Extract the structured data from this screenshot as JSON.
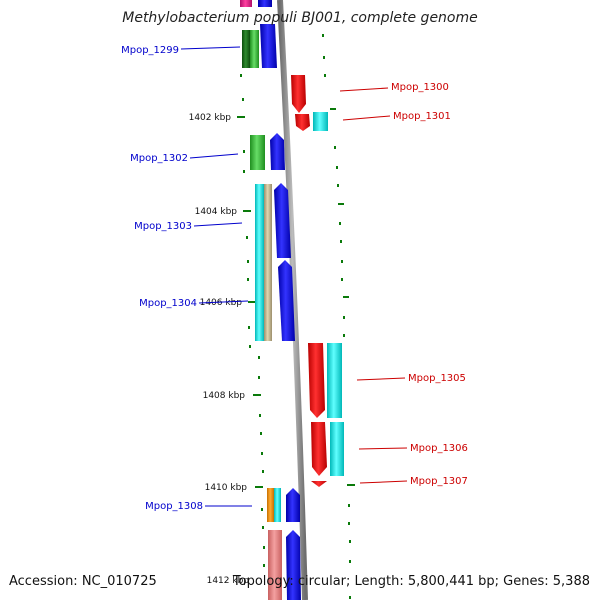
{
  "title": "Methylobacterium populi BJ001, complete genome",
  "accession": "Accession: NC_010725",
  "summary": "Topology: circular; Length: 5,800,441 bp; Genes: 5,388",
  "scale_ticks": [
    "1402 kbp",
    "1404 kbp",
    "1406 kbp",
    "1408 kbp",
    "1410 kbp",
    "1412 kbp"
  ],
  "colors": {
    "left_strand_label": "#0000cc",
    "right_strand_label": "#cc0000",
    "backbone": "#8c8c8c",
    "tick": "#0a7a0a"
  },
  "gene_labels": {
    "left": [
      "Mpop_1299",
      "Mpop_1302",
      "Mpop_1303",
      "Mpop_1304",
      "Mpop_1308"
    ],
    "right": [
      "Mpop_1300",
      "Mpop_1301",
      "Mpop_1305",
      "Mpop_1306",
      "Mpop_1307"
    ]
  }
}
